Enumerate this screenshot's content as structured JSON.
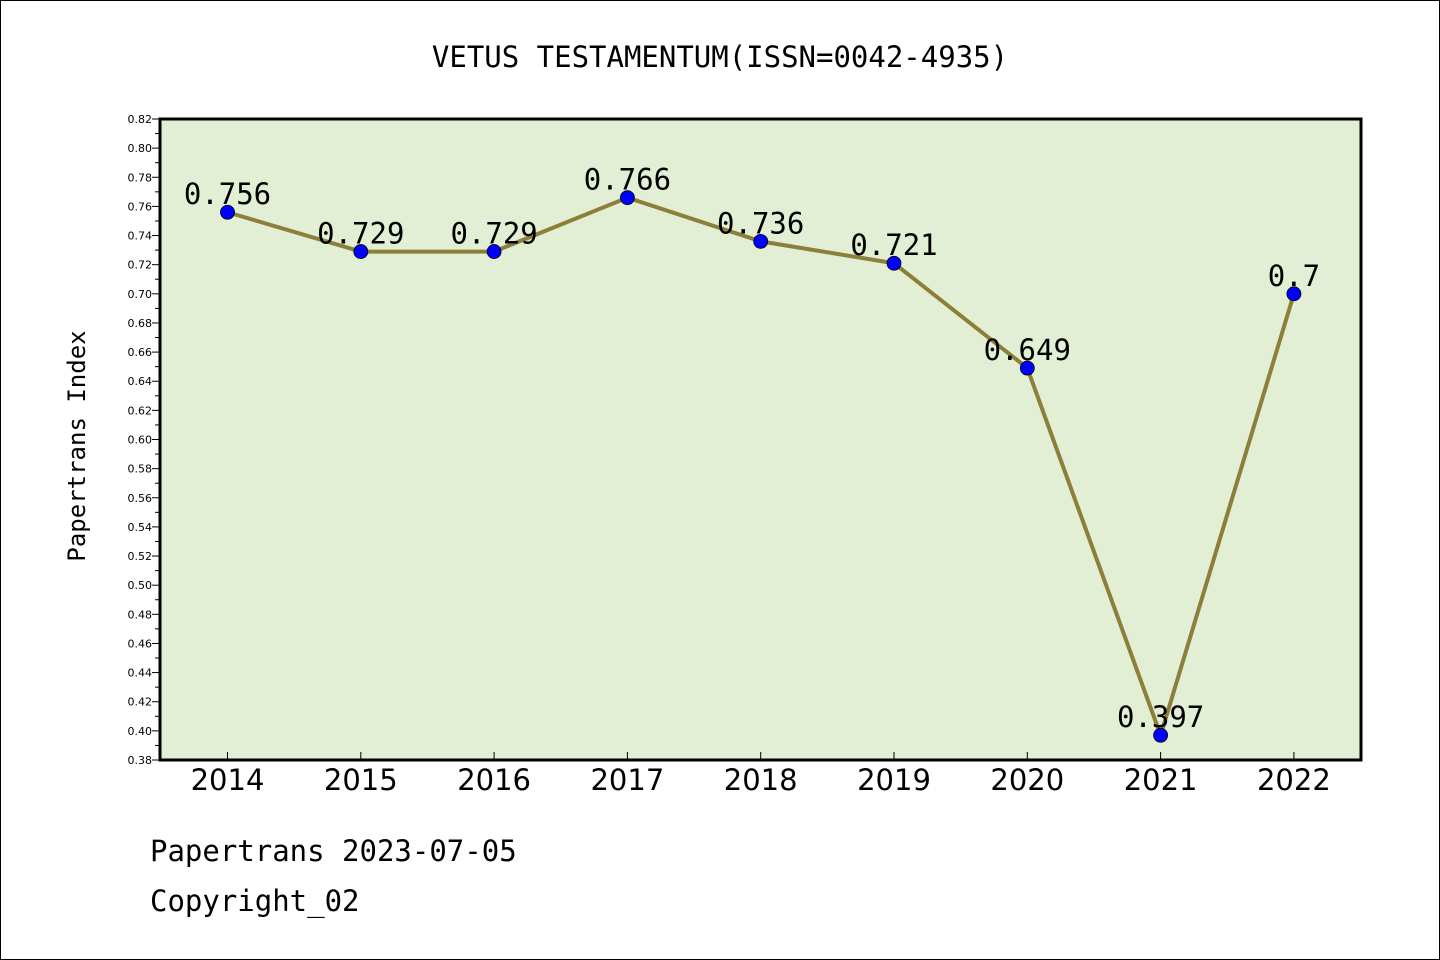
{
  "chart_data": {
    "type": "line",
    "title": "VETUS TESTAMENTUM(ISSN=0042-4935)",
    "xlabel": "",
    "ylabel": "Papertrans Index",
    "categories": [
      "2014",
      "2015",
      "2016",
      "2017",
      "2018",
      "2019",
      "2020",
      "2021",
      "2022"
    ],
    "series": [
      {
        "values": [
          0.756,
          0.729,
          0.729,
          0.766,
          0.736,
          0.721,
          0.649,
          0.397,
          0.7
        ]
      }
    ],
    "data_labels": [
      "0.756",
      "0.729",
      "0.729",
      "0.766",
      "0.736",
      "0.721",
      "0.649",
      "0.397",
      "0.7"
    ],
    "ylim": [
      0.38,
      0.82
    ],
    "yticks": [
      "0.38",
      "0.40",
      "0.42",
      "0.44",
      "0.46",
      "0.48",
      "0.50",
      "0.52",
      "0.54",
      "0.56",
      "0.58",
      "0.60",
      "0.62",
      "0.64",
      "0.66",
      "0.68",
      "0.70",
      "0.72",
      "0.74",
      "0.76",
      "0.78",
      "0.80",
      "0.82"
    ],
    "grid": false,
    "legend": "none",
    "colors": {
      "plot_background": "#e2efd4",
      "line": "#8c7f3a",
      "marker": "#0000ff"
    }
  },
  "footer": {
    "date_line": "Papertrans 2023-07-05",
    "copyright": "Copyright_02"
  }
}
